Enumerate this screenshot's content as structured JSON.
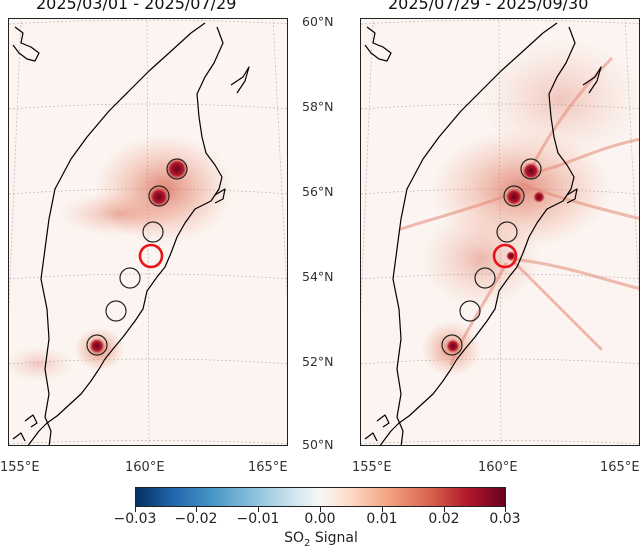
{
  "panels": [
    {
      "title": "2025/03/01 - 2025/07/29"
    },
    {
      "title": "2025/07/29 - 2025/09/30"
    }
  ],
  "latitude_labels": [
    "60°N",
    "58°N",
    "56°N",
    "54°N",
    "52°N",
    "50°N"
  ],
  "longitude_labels": [
    "155°E",
    "160°E",
    "165°E"
  ],
  "colorbar": {
    "ticks": [
      "−0.03",
      "−0.02",
      "−0.01",
      "0.00",
      "0.01",
      "0.02",
      "0.03"
    ],
    "label_main": "SO",
    "label_sub": "2",
    "label_tail": " Signal",
    "range": [
      -0.03,
      0.03
    ],
    "colormap": "red-blue diverging"
  },
  "markers": {
    "volcano_circle_color": "#222222",
    "highlight_circle_color": "#e8141b"
  }
}
